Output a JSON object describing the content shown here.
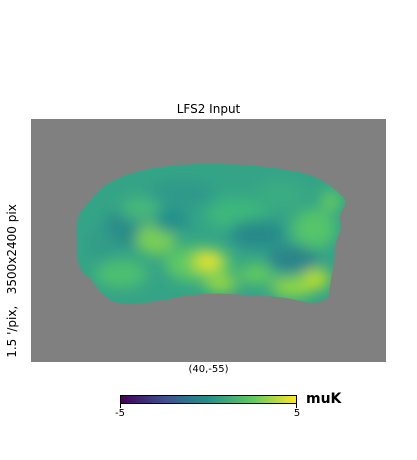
{
  "figure": {
    "title": "LFS2 Input",
    "ylabel": "1.5 '/pix,   3500x2400 pix",
    "center_label": "(40,-55)",
    "background_color": "#808080"
  },
  "colorbar": {
    "min_label": "-5",
    "max_label": "5",
    "unit": "muK",
    "colormap": "viridis",
    "stops": [
      "#440154",
      "#3b528b",
      "#21918c",
      "#5ec962",
      "#fde725"
    ]
  }
}
